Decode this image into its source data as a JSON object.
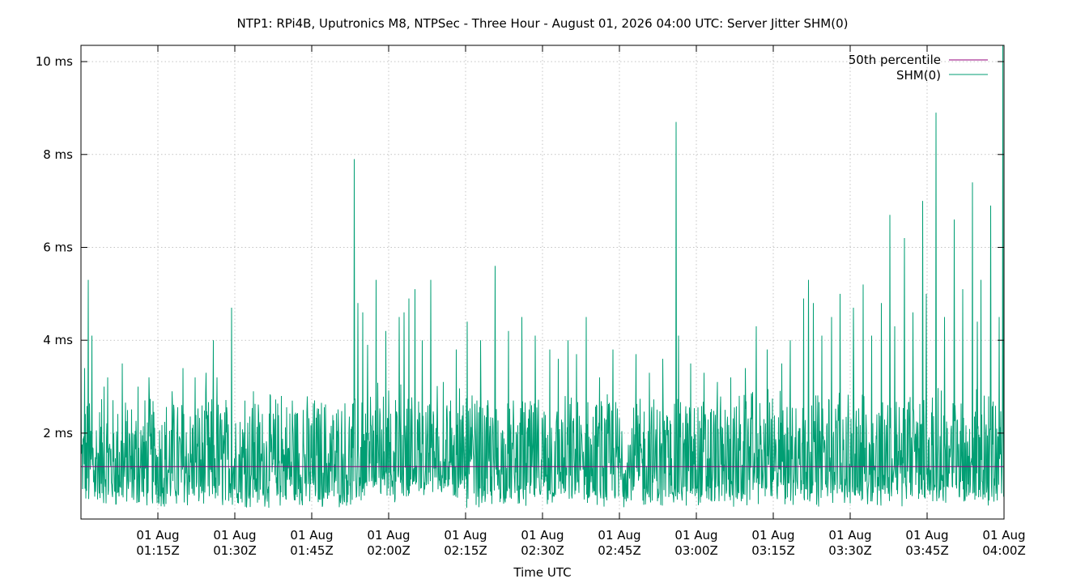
{
  "chart_data": {
    "type": "line",
    "title": "NTP1: RPi4B, Uputronics M8, NTPSec - Three Hour - August 01, 2026 04:00 UTC: Server Jitter SHM(0)",
    "xlabel": "Time UTC",
    "ylabel": "",
    "x_range": [
      "01 Aug 01:00Z",
      "01 Aug 04:00Z"
    ],
    "x_ticks": [
      {
        "line1": "01 Aug",
        "line2": "01:15Z",
        "minutes": 15
      },
      {
        "line1": "01 Aug",
        "line2": "01:30Z",
        "minutes": 30
      },
      {
        "line1": "01 Aug",
        "line2": "01:45Z",
        "minutes": 45
      },
      {
        "line1": "01 Aug",
        "line2": "02:00Z",
        "minutes": 60
      },
      {
        "line1": "01 Aug",
        "line2": "02:15Z",
        "minutes": 75
      },
      {
        "line1": "01 Aug",
        "line2": "02:30Z",
        "minutes": 90
      },
      {
        "line1": "01 Aug",
        "line2": "02:45Z",
        "minutes": 105
      },
      {
        "line1": "01 Aug",
        "line2": "03:00Z",
        "minutes": 120
      },
      {
        "line1": "01 Aug",
        "line2": "03:15Z",
        "minutes": 135
      },
      {
        "line1": "01 Aug",
        "line2": "03:30Z",
        "minutes": 150
      },
      {
        "line1": "01 Aug",
        "line2": "03:45Z",
        "minutes": 165
      },
      {
        "line1": "01 Aug",
        "line2": "04:00Z",
        "minutes": 180
      }
    ],
    "y_ticks": [
      {
        "label": "2 ms",
        "value": 2
      },
      {
        "label": "4 ms",
        "value": 4
      },
      {
        "label": "6 ms",
        "value": 6
      },
      {
        "label": "8 ms",
        "value": 8
      },
      {
        "label": "10 ms",
        "value": 10
      }
    ],
    "ylim": [
      0.15,
      10.35
    ],
    "grid": true,
    "legend_position": "top-right",
    "series": [
      {
        "name": "50th percentile",
        "color": "#94007e",
        "value": 1.28
      },
      {
        "name": "SHM(0)",
        "color": "#009e73",
        "baseline": 1.3,
        "spikes": [
          [
            0,
            3.8
          ],
          [
            1.5,
            3.4
          ],
          [
            3,
            5.3
          ],
          [
            5,
            4.1
          ],
          [
            10,
            3.0
          ],
          [
            12,
            3.2
          ],
          [
            18,
            3.5
          ],
          [
            25,
            3.0
          ],
          [
            30,
            3.2
          ],
          [
            35,
            2.7
          ],
          [
            40,
            2.9
          ],
          [
            45,
            3.4
          ],
          [
            50,
            3.2
          ],
          [
            55,
            3.3
          ],
          [
            58,
            4.0
          ],
          [
            60,
            3.2
          ],
          [
            66,
            4.7
          ],
          [
            72,
            2.7
          ],
          [
            76,
            2.9
          ],
          [
            82,
            3.0
          ],
          [
            88,
            2.8
          ],
          [
            93,
            2.7
          ],
          [
            98,
            2.5
          ],
          [
            120,
            7.9
          ],
          [
            121,
            5.3
          ],
          [
            122,
            4.8
          ],
          [
            124,
            4.6
          ],
          [
            126,
            3.9
          ],
          [
            130,
            5.3
          ],
          [
            134,
            4.2
          ],
          [
            140,
            4.5
          ],
          [
            142,
            4.6
          ],
          [
            144,
            4.9
          ],
          [
            147,
            5.1
          ],
          [
            150,
            4.0
          ],
          [
            154,
            5.3
          ],
          [
            160,
            4.4
          ],
          [
            165,
            3.8
          ],
          [
            170,
            4.4
          ],
          [
            176,
            4.0
          ],
          [
            182,
            5.6
          ],
          [
            188,
            4.2
          ],
          [
            194,
            4.5
          ],
          [
            200,
            4.1
          ],
          [
            206,
            3.8
          ],
          [
            210,
            3.6
          ],
          [
            214,
            4.0
          ],
          [
            218,
            3.7
          ],
          [
            222,
            4.5
          ],
          [
            228,
            3.2
          ],
          [
            234,
            3.8
          ],
          [
            238,
            3.4
          ],
          [
            244,
            3.7
          ],
          [
            250,
            3.3
          ],
          [
            256,
            3.6
          ],
          [
            262,
            8.7
          ],
          [
            263,
            4.1
          ],
          [
            268,
            3.5
          ],
          [
            274,
            3.3
          ],
          [
            280,
            3.1
          ],
          [
            286,
            3.2
          ],
          [
            292,
            3.4
          ],
          [
            297,
            4.3
          ],
          [
            302,
            3.8
          ],
          [
            308,
            3.5
          ],
          [
            312,
            4.0
          ],
          [
            318,
            4.9
          ],
          [
            320,
            5.3
          ],
          [
            322,
            4.8
          ],
          [
            326,
            4.1
          ],
          [
            330,
            4.5
          ],
          [
            334,
            5.0
          ],
          [
            340,
            4.7
          ],
          [
            344,
            5.2
          ],
          [
            348,
            4.1
          ],
          [
            352,
            4.8
          ],
          [
            356,
            6.7
          ],
          [
            358,
            4.3
          ],
          [
            362,
            6.2
          ],
          [
            366,
            4.6
          ],
          [
            370,
            7.0
          ],
          [
            372,
            5.0
          ],
          [
            376,
            8.9
          ],
          [
            380,
            4.5
          ],
          [
            384,
            6.6
          ],
          [
            388,
            5.1
          ],
          [
            392,
            7.4
          ],
          [
            394,
            4.4
          ],
          [
            396,
            5.3
          ],
          [
            400,
            6.9
          ],
          [
            402,
            4.9
          ],
          [
            404,
            4.5
          ],
          [
            405.5,
            10.35
          ]
        ]
      }
    ]
  }
}
